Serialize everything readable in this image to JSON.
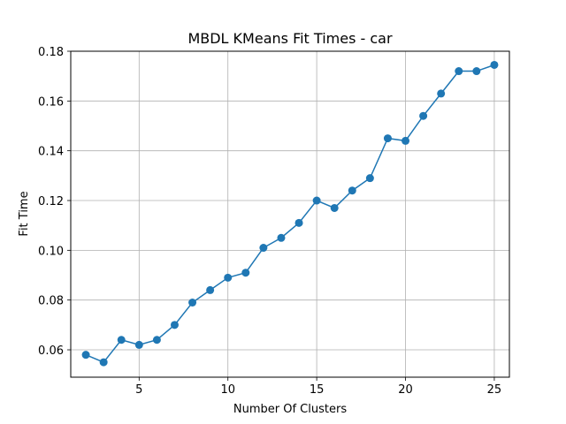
{
  "chart_data": {
    "type": "line",
    "title": "MBDL KMeans Fit Times - car",
    "xlabel": "Number Of Clusters",
    "ylabel": "Fit Time",
    "xlim": [
      1.15,
      25.85
    ],
    "ylim": [
      0.049,
      0.18
    ],
    "x_ticks": [
      5,
      10,
      15,
      20,
      25
    ],
    "y_ticks": [
      0.06,
      0.08,
      0.1,
      0.12,
      0.14,
      0.16,
      0.18
    ],
    "x_tick_labels": [
      "5",
      "10",
      "15",
      "20",
      "25"
    ],
    "y_tick_labels": [
      "0.06",
      "0.08",
      "0.10",
      "0.12",
      "0.14",
      "0.16",
      "0.18"
    ],
    "grid": true,
    "color": "#1f77b4",
    "marker": "circle",
    "series": [
      {
        "x": [
          2,
          3,
          4,
          5,
          6,
          7,
          8,
          9,
          10,
          11,
          12,
          13,
          14,
          15,
          16,
          17,
          18,
          19,
          20,
          21,
          22,
          23,
          24,
          25
        ],
        "values": [
          0.058,
          0.055,
          0.064,
          0.062,
          0.064,
          0.07,
          0.079,
          0.084,
          0.089,
          0.091,
          0.101,
          0.105,
          0.111,
          0.12,
          0.117,
          0.124,
          0.129,
          0.145,
          0.144,
          0.154,
          0.163,
          0.172,
          0.172,
          0.1745
        ]
      }
    ]
  }
}
